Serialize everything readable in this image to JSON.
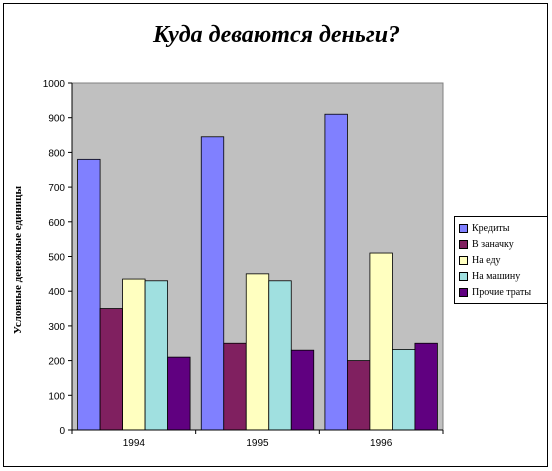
{
  "chart_data": {
    "type": "bar",
    "title": "Куда деваются деньги?",
    "ylabel": "Условные денежные единицы",
    "xlabel": "",
    "categories": [
      "1994",
      "1995",
      "1996"
    ],
    "ylim": [
      0,
      1000
    ],
    "yticks": [
      "0",
      "100",
      "200",
      "300",
      "400",
      "500",
      "600",
      "700",
      "800",
      "900",
      "1000"
    ],
    "grid": false,
    "plot_background": "#c0c0c0",
    "legend_position": "right",
    "series": [
      {
        "name": "Кредиты",
        "color": "#8080ff",
        "values": [
          780,
          845,
          910
        ]
      },
      {
        "name": "В заначку",
        "color": "#802060",
        "values": [
          350,
          250,
          200
        ]
      },
      {
        "name": "На еду",
        "color": "#ffffc0",
        "values": [
          435,
          450,
          510
        ]
      },
      {
        "name": "На машину",
        "color": "#a0e0e0",
        "values": [
          430,
          430,
          232
        ]
      },
      {
        "name": "Прочие траты",
        "color": "#600080",
        "values": [
          210,
          230,
          250
        ]
      }
    ]
  }
}
